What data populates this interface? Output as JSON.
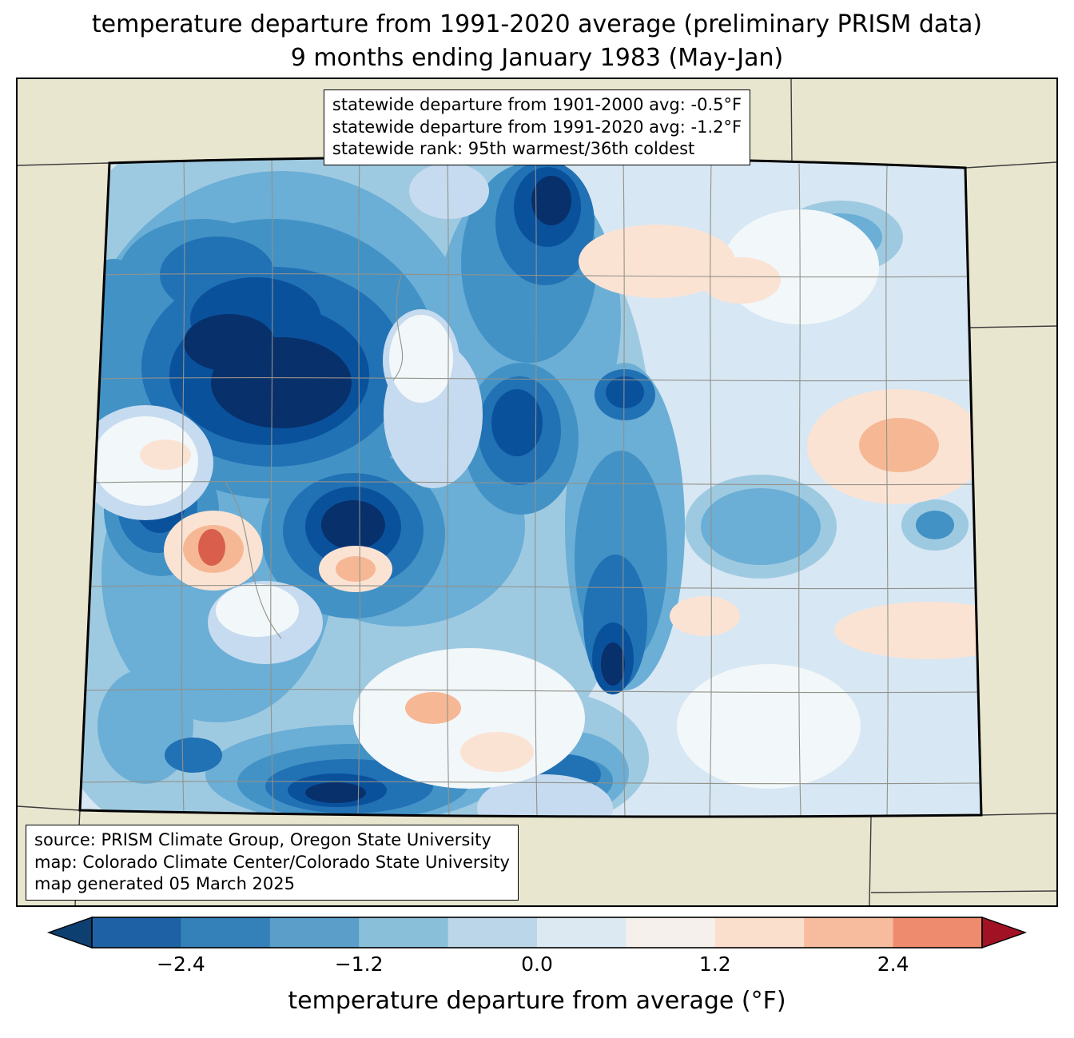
{
  "title": {
    "line1": "temperature departure from 1991-2020 average (preliminary PRISM data)",
    "line2": "9 months ending January 1983 (May-Jan)"
  },
  "stats_box": {
    "line1": "statewide departure from 1901-2000 avg: -0.5°F",
    "line2": "statewide departure from 1991-2020 avg: -1.2°F",
    "line3": "statewide rank: 95th warmest/36th coldest"
  },
  "source_box": {
    "line1": "source: PRISM Climate Group, Oregon State University",
    "line2": "map: Colorado Climate Center/Colorado State University",
    "line3": "map generated 05 March 2025"
  },
  "colorbar": {
    "label": "temperature departure from average (°F)",
    "ticks": [
      "−2.4",
      "−1.2",
      "0.0",
      "1.2",
      "2.4"
    ],
    "tick_values": [
      -2.4,
      -1.2,
      0.0,
      1.2,
      2.4
    ],
    "range": [
      -3.0,
      3.0
    ],
    "segment_colors": [
      "#1e61a5",
      "#3480b9",
      "#5a9ec9",
      "#8abfda",
      "#bad6e8",
      "#dde9f2",
      "#f6f0ec",
      "#fbdfcd",
      "#f7bc9e",
      "#ee8a6d"
    ],
    "left_arrow_color": "#0d3f70",
    "right_arrow_color": "#a11225"
  },
  "map": {
    "region": "Colorado",
    "palette": {
      "land": "#e9e6d0",
      "base": "#d7e7f3",
      "b0": "#08306b",
      "b1": "#0a519c",
      "b2": "#2171b5",
      "b3": "#4292c6",
      "b4": "#6baed6",
      "b5": "#9ecae1",
      "b6": "#c6dbef",
      "w": "#f2f7fa",
      "p0": "#fbe3d4",
      "p1": "#f6b894",
      "r1": "#d95f4c",
      "county_line": "#92928a",
      "state_line": "#3c3c3c"
    }
  }
}
